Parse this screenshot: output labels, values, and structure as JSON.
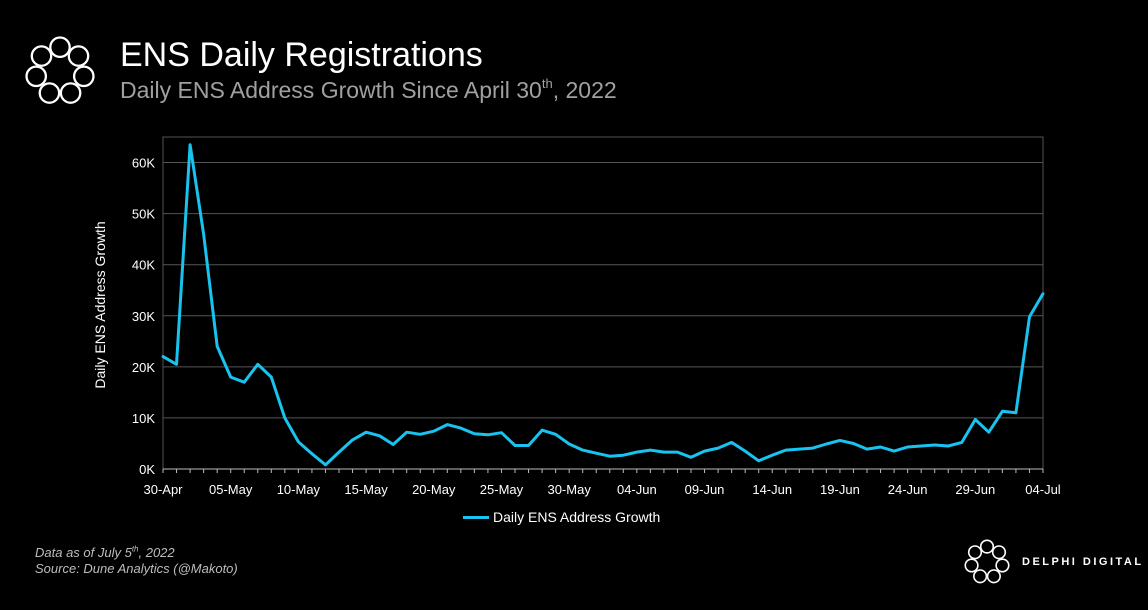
{
  "header": {
    "title": "ENS Daily Registrations",
    "subtitle_main": "Daily ENS Address Growth Since April 30",
    "subtitle_sup": "th",
    "subtitle_end": ", 2022"
  },
  "footer": {
    "data_as_of_main": "Data as of July 5",
    "data_as_of_sup": "th",
    "data_as_of_end": ", 2022",
    "source": "Source:  Dune Analytics (@Makoto)",
    "brand": "DELPHI DIGITAL"
  },
  "icons": {
    "top_logo": "delphi-flower-icon",
    "brand_logo": "delphi-flower-icon"
  },
  "colors": {
    "background": "#000000",
    "line": "#19c3f0",
    "grid": "#555555",
    "subtitle": "#a0a0a0"
  },
  "chart_data": {
    "type": "line",
    "title": "ENS Daily Registrations",
    "xlabel": "",
    "ylabel": "Daily ENS Address Growth",
    "ylim": [
      0,
      65000
    ],
    "yticks": [
      0,
      10000,
      20000,
      30000,
      40000,
      50000,
      60000
    ],
    "ytick_labels": [
      "0K",
      "10K",
      "20K",
      "30K",
      "40K",
      "50K",
      "60K"
    ],
    "xtick_labels": [
      "30-Apr",
      "05-May",
      "10-May",
      "15-May",
      "20-May",
      "25-May",
      "30-May",
      "04-Jun",
      "09-Jun",
      "14-Jun",
      "19-Jun",
      "24-Jun",
      "29-Jun",
      "04-Jul"
    ],
    "xtick_step_days": 5,
    "grid": true,
    "legend_position": "bottom-center",
    "series": [
      {
        "name": "Daily ENS Address Growth",
        "color": "#19c3f0",
        "start_date": "30-Apr",
        "values": [
          22000,
          20500,
          63500,
          46000,
          24000,
          18000,
          17000,
          20500,
          18000,
          10000,
          5300,
          3000,
          800,
          3300,
          5700,
          7200,
          6500,
          4800,
          7200,
          6800,
          7400,
          8700,
          8000,
          6900,
          6700,
          7100,
          4600,
          4600,
          7600,
          6800,
          4900,
          3700,
          3100,
          2500,
          2700,
          3300,
          3700,
          3300,
          3300,
          2300,
          3500,
          4100,
          5200,
          3500,
          1600,
          2700,
          3700,
          3900,
          4100,
          4900,
          5600,
          5000,
          3900,
          4300,
          3500,
          4300,
          4500,
          4700,
          4500,
          5200,
          9700,
          7200,
          11300,
          11000,
          29800,
          34300
        ]
      }
    ]
  }
}
